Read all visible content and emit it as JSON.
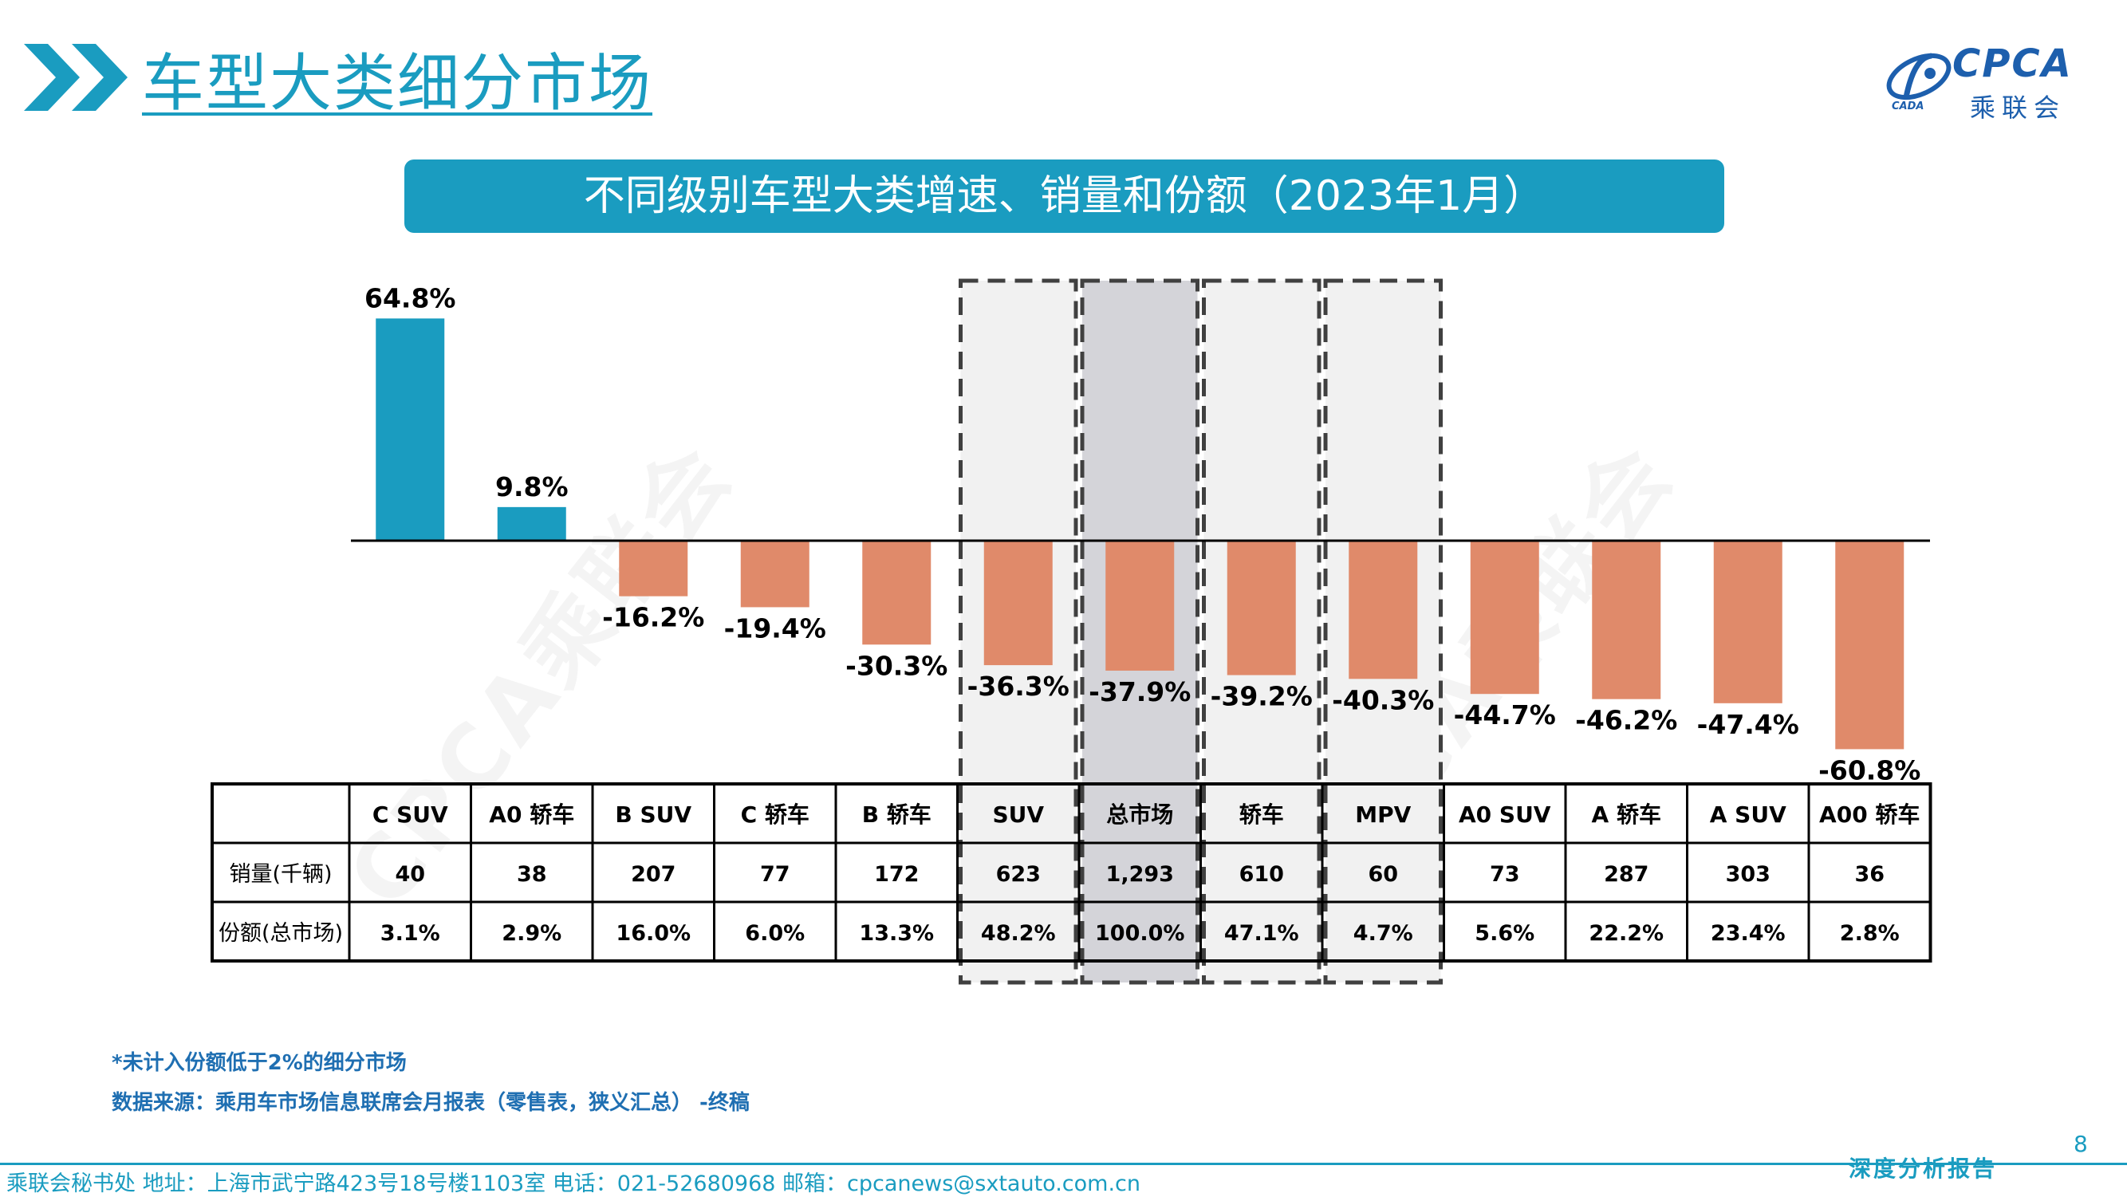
{
  "header": {
    "title": "车型大类细分市场",
    "logo": {
      "name": "CPCA",
      "cn": "乘联会",
      "sub": "CADA"
    }
  },
  "banner": {
    "title": "不同级别车型大类增速、销量和份额（2023年1月）"
  },
  "watermark": "CPCA乘联会",
  "chart_data": {
    "type": "bar",
    "categories": [
      "C SUV",
      "A0 轿车",
      "B SUV",
      "C 轿车",
      "B 轿车",
      "SUV",
      "总市场",
      "轿车",
      "MPV",
      "A0 SUV",
      "A 轿车",
      "A SUV",
      "A00 轿车"
    ],
    "values": [
      64.8,
      9.8,
      -16.2,
      -19.4,
      -30.3,
      -36.3,
      -37.9,
      -39.2,
      -40.3,
      -44.7,
      -46.2,
      -47.4,
      -60.8
    ],
    "value_labels": [
      "64.8%",
      "9.8%",
      "-16.2%",
      "-19.4%",
      "-30.3%",
      "-36.3%",
      "-37.9%",
      "-39.2%",
      "-40.3%",
      "-44.7%",
      "-46.2%",
      "-47.4%",
      "-60.8%"
    ],
    "colors": {
      "positive": "#1a9cc0",
      "negative": "#e08a6a"
    },
    "highlight_boxes": [
      5,
      6,
      7,
      8
    ],
    "highlight_main": 6,
    "table": {
      "rows": [
        {
          "label": "销量(千辆)",
          "values": [
            "40",
            "38",
            "207",
            "77",
            "172",
            "623",
            "1,293",
            "610",
            "60",
            "73",
            "287",
            "303",
            "36"
          ]
        },
        {
          "label": "份额(总市场)",
          "values": [
            "3.1%",
            "2.9%",
            "16.0%",
            "6.0%",
            "13.3%",
            "48.2%",
            "100.0%",
            "47.1%",
            "4.7%",
            "5.6%",
            "22.2%",
            "23.4%",
            "2.8%"
          ]
        }
      ]
    }
  },
  "notes": {
    "note1": "*未计入份额低于2%的细分市场",
    "source": "数据来源：乘用车市场信息联席会月报表（零售表，狭义汇总） -终稿"
  },
  "page_number": "8",
  "footer": {
    "contact": "乘联会秘书处   地址：上海市武宁路423号18号楼1103室  电话：021-52680968   邮箱：cpcanews@sxtauto.com.cn",
    "tagline": "深度分析报告"
  }
}
